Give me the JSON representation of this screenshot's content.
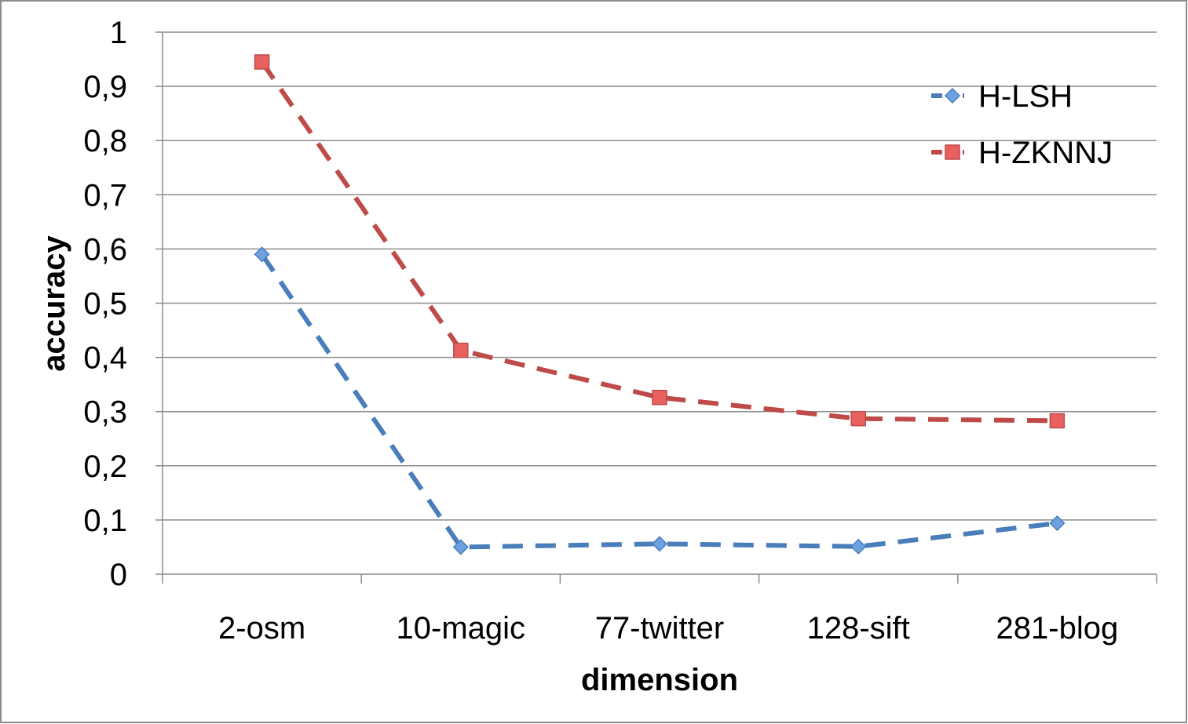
{
  "chart_data": {
    "type": "line",
    "title": "",
    "xlabel": "dimension",
    "ylabel": "accuracy",
    "categories": [
      "2-osm",
      "10-magic",
      "77-twitter",
      "128-sift",
      "281-blog"
    ],
    "ylim": [
      0,
      1
    ],
    "yticks": [
      0,
      0.1,
      0.2,
      0.3,
      0.4,
      0.5,
      0.6,
      0.7,
      0.8,
      0.9,
      1
    ],
    "ytick_labels": [
      "0",
      "0,1",
      "0,2",
      "0,3",
      "0,4",
      "0,5",
      "0,6",
      "0,7",
      "0,8",
      "0,9",
      "1"
    ],
    "grid": true,
    "legend_position": "top-right",
    "series": [
      {
        "name": "H-LSH",
        "values": [
          0.59,
          0.05,
          0.056,
          0.051,
          0.094
        ],
        "color": "#4a7ebb",
        "marker": "diamond",
        "marker_fill": "#6fa0e0",
        "line_style": "dashed"
      },
      {
        "name": "H-ZKNNJ",
        "values": [
          0.945,
          0.413,
          0.326,
          0.287,
          0.283
        ],
        "color": "#be4b48",
        "marker": "square",
        "marker_fill": "#e8615e",
        "line_style": "dashed"
      }
    ]
  }
}
